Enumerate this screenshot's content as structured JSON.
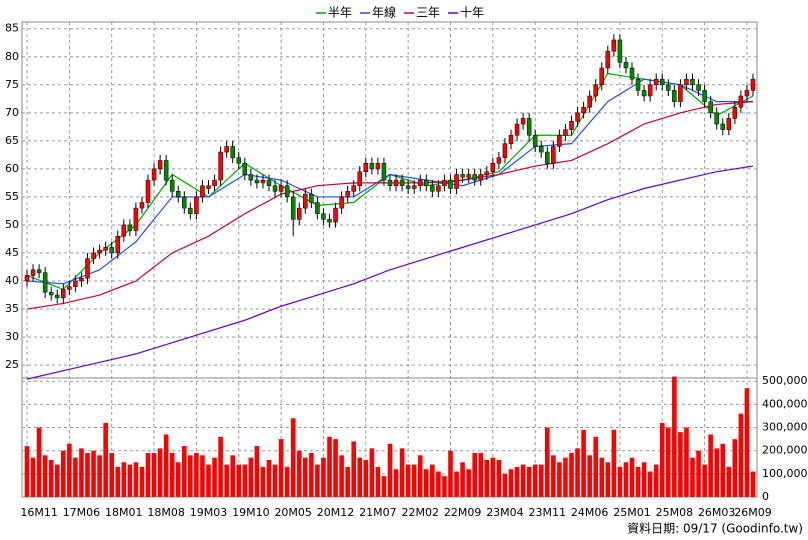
{
  "chart_data": [
    {
      "type": "candlestick",
      "grid": true,
      "legend": "top",
      "up_color": "#ff0000",
      "down_color": "#008800",
      "ylim": [
        22.7,
        86.2
      ],
      "yticks": [
        25,
        30,
        35,
        40,
        45,
        50,
        55,
        60,
        65,
        70,
        75,
        80,
        85
      ],
      "open": [
        40,
        41,
        42,
        41.5,
        38,
        37.5,
        37,
        38.5,
        39,
        40,
        40.5,
        44,
        45,
        45.5,
        46,
        45,
        48,
        50,
        49,
        53,
        54,
        58,
        60,
        61.5,
        58,
        56,
        55,
        53,
        52,
        55,
        56.5,
        57,
        58,
        63,
        64,
        62,
        61,
        59,
        58,
        57.5,
        58,
        57,
        56,
        57,
        55,
        51,
        53,
        55.5,
        54,
        52,
        51,
        50.5,
        53,
        55,
        56,
        57,
        59.5,
        61,
        60,
        61,
        58,
        57,
        58,
        57,
        56.5,
        57,
        58,
        57,
        56,
        57,
        58,
        56.5,
        59,
        58.5,
        59,
        58,
        59,
        59.5,
        61,
        62,
        64.5,
        66,
        68,
        69,
        66,
        64,
        63,
        61,
        64,
        66,
        67,
        68.5,
        70,
        71,
        73,
        75,
        78,
        81,
        83,
        79,
        78,
        76,
        74,
        73,
        75,
        76,
        75,
        74,
        72,
        75,
        76,
        75,
        74,
        72,
        70,
        68,
        67,
        69,
        71,
        73,
        74
      ],
      "high": [
        42,
        43,
        43,
        42.5,
        39,
        38.5,
        39.5,
        40,
        41,
        41.5,
        45,
        46,
        46.5,
        47,
        47,
        49,
        51,
        51,
        54,
        55,
        59,
        61,
        62.5,
        62.5,
        59,
        57,
        56,
        54,
        56,
        58,
        58,
        59,
        64,
        65,
        65,
        63,
        62,
        60,
        59,
        59,
        59,
        58,
        58,
        58,
        56,
        54,
        56.5,
        56.5,
        55,
        53,
        52,
        54,
        56,
        57,
        58,
        60.5,
        62,
        62,
        62,
        62,
        59,
        59,
        59,
        58,
        58,
        59,
        59,
        58,
        58,
        59,
        59,
        60,
        60,
        60,
        60,
        60,
        60.5,
        62,
        63,
        65.5,
        67,
        69,
        70,
        70,
        67,
        65,
        64,
        65,
        67,
        68,
        69.5,
        71,
        72,
        74,
        76,
        79,
        82,
        84,
        84,
        80,
        79,
        77,
        75,
        76,
        77,
        77,
        76,
        75,
        76,
        77,
        77,
        76,
        75,
        73,
        71,
        69,
        70,
        72,
        74,
        75,
        77
      ],
      "low": [
        39,
        40,
        40.5,
        37,
        36.5,
        36,
        36,
        37.5,
        38,
        39,
        39.5,
        43,
        44,
        44.5,
        44,
        44,
        47,
        48,
        48,
        52,
        53,
        57,
        59,
        57,
        55,
        54,
        52,
        51,
        51,
        54,
        55.5,
        56,
        57,
        62,
        61,
        60,
        58,
        57,
        56.5,
        56.5,
        56,
        55,
        55,
        54,
        48,
        50,
        52,
        53,
        51,
        50,
        49.5,
        49.5,
        52,
        54,
        55,
        56,
        58.5,
        59,
        59,
        57,
        56,
        56,
        56,
        55.5,
        55.5,
        56,
        56,
        55,
        55,
        56,
        55.5,
        55.5,
        57.5,
        57.5,
        57,
        57,
        58,
        58.5,
        60,
        61,
        63.5,
        65,
        67,
        65,
        63,
        62,
        60,
        60,
        63,
        65,
        66,
        67.5,
        69,
        70,
        72,
        74,
        77,
        80,
        78,
        77,
        75,
        73,
        72,
        72,
        74,
        74,
        73,
        71,
        71,
        74,
        74,
        73,
        71,
        69,
        67,
        66,
        66,
        68,
        70,
        72,
        73
      ],
      "close": [
        41,
        42,
        41.5,
        38,
        37.5,
        37,
        38.5,
        39,
        40,
        40.5,
        44,
        45,
        45.5,
        46,
        45,
        48,
        50,
        49,
        53,
        54,
        58,
        60,
        61.5,
        58,
        56,
        55,
        53,
        52,
        55,
        57,
        57,
        58,
        63,
        64,
        62,
        61,
        59,
        58,
        57.5,
        58,
        57,
        56,
        57,
        55,
        51,
        53,
        55.5,
        54,
        52,
        51,
        50.5,
        53,
        55,
        56,
        57,
        59.5,
        61,
        60,
        61,
        58,
        57,
        58,
        57,
        56.5,
        57,
        58,
        57,
        56,
        57,
        58,
        56.5,
        59,
        58.5,
        59,
        58,
        59,
        59.5,
        61,
        62,
        64.5,
        66,
        68,
        69,
        66,
        64,
        63,
        61,
        64,
        66,
        67,
        68.5,
        70,
        71,
        73,
        75,
        78,
        81,
        83,
        79,
        78,
        76,
        74,
        73,
        75,
        76,
        75,
        74,
        72,
        75,
        76,
        75,
        74,
        72,
        70,
        68,
        67,
        69,
        71,
        73,
        74,
        76
      ],
      "lines": [
        {
          "name": "半年",
          "color": "#00aa00",
          "x": [
            0,
            6,
            12,
            18,
            24,
            30,
            36,
            42,
            48,
            54,
            60,
            66,
            72,
            78,
            84,
            90,
            96,
            102,
            108,
            114,
            120
          ],
          "values": [
            41,
            38.5,
            45,
            50,
            59,
            55,
            61,
            57,
            53.5,
            54,
            59,
            57,
            58,
            59.5,
            66,
            66,
            77,
            76,
            75,
            69.5,
            73
          ]
        },
        {
          "name": "年線",
          "color": "#1e50ff",
          "x": [
            0,
            6,
            12,
            18,
            24,
            30,
            36,
            42,
            48,
            54,
            60,
            66,
            72,
            78,
            84,
            90,
            96,
            102,
            108,
            114,
            120
          ],
          "values": [
            40,
            39.5,
            42,
            47,
            55,
            55,
            59,
            58,
            55,
            55,
            59,
            58,
            57,
            59,
            64,
            64.5,
            72,
            76,
            75,
            72,
            72
          ]
        },
        {
          "name": "三年",
          "color": "#cc0033",
          "x": [
            0,
            6,
            12,
            18,
            24,
            30,
            36,
            42,
            48,
            54,
            60,
            66,
            72,
            78,
            84,
            90,
            96,
            102,
            108,
            114,
            120
          ],
          "values": [
            35,
            36,
            37.5,
            40,
            45,
            48,
            52,
            55.5,
            57,
            57.5,
            57.5,
            57.5,
            58,
            59,
            60.5,
            61.5,
            64.5,
            68,
            70,
            71.5,
            72
          ]
        },
        {
          "name": "十年",
          "color": "#6600cc",
          "x": [
            0,
            6,
            12,
            18,
            24,
            30,
            36,
            42,
            48,
            54,
            60,
            66,
            72,
            78,
            84,
            90,
            96,
            102,
            108,
            114,
            120
          ],
          "values": [
            22.5,
            24,
            25.5,
            27,
            29,
            31,
            33,
            35.5,
            37.5,
            39.5,
            42,
            44,
            46,
            48,
            50,
            52,
            54.5,
            56.5,
            58,
            59.5,
            60.5
          ]
        }
      ]
    },
    {
      "type": "bar",
      "grid": true,
      "color": "#ff0000",
      "ylim": [
        0,
        514000
      ],
      "yticks": [
        0,
        {
          "value": 100000,
          "label": "100,000"
        },
        {
          "value": 200000,
          "label": "200,000"
        },
        {
          "value": 300000,
          "label": "300,000"
        },
        {
          "value": 400000,
          "label": "400,000"
        },
        {
          "value": 500000,
          "label": "500,000"
        }
      ],
      "categories": [
        null,
        null,
        "16M11",
        null,
        null,
        null,
        null,
        null,
        null,
        "17M06",
        null,
        null,
        null,
        null,
        null,
        null,
        "18M01",
        null,
        null,
        null,
        null,
        null,
        null,
        "18M08",
        null,
        null,
        null,
        null,
        null,
        null,
        "19M03",
        null,
        null,
        null,
        null,
        null,
        null,
        "19M10",
        null,
        null,
        null,
        null,
        null,
        null,
        "20M05",
        null,
        null,
        null,
        null,
        null,
        null,
        "20M12",
        null,
        null,
        null,
        null,
        null,
        null,
        "21M07",
        null,
        null,
        null,
        null,
        null,
        null,
        "22M02",
        null,
        null,
        null,
        null,
        null,
        null,
        "22M09",
        null,
        null,
        null,
        null,
        null,
        null,
        "23M04",
        null,
        null,
        null,
        null,
        null,
        null,
        "23M11",
        null,
        null,
        null,
        null,
        null,
        null,
        "24M06",
        null,
        null,
        null,
        null,
        null,
        null,
        "25M01",
        null,
        null,
        null,
        null,
        null,
        null,
        "25M08",
        null,
        null,
        null,
        null,
        null,
        null,
        "26M03",
        null,
        null,
        null,
        null,
        null,
        "26M09"
      ],
      "values": [
        220000,
        170000,
        300000,
        180000,
        160000,
        140000,
        200000,
        230000,
        170000,
        210000,
        190000,
        200000,
        180000,
        320000,
        190000,
        130000,
        150000,
        140000,
        150000,
        130000,
        190000,
        190000,
        210000,
        270000,
        190000,
        150000,
        220000,
        180000,
        190000,
        180000,
        140000,
        170000,
        260000,
        140000,
        180000,
        140000,
        140000,
        170000,
        220000,
        130000,
        160000,
        140000,
        250000,
        130000,
        340000,
        200000,
        170000,
        190000,
        140000,
        170000,
        260000,
        250000,
        180000,
        130000,
        240000,
        170000,
        160000,
        210000,
        130000,
        90000,
        230000,
        120000,
        210000,
        140000,
        140000,
        180000,
        120000,
        140000,
        110000,
        90000,
        200000,
        110000,
        150000,
        120000,
        190000,
        190000,
        160000,
        170000,
        160000,
        100000,
        120000,
        130000,
        140000,
        130000,
        140000,
        140000,
        300000,
        180000,
        150000,
        170000,
        190000,
        210000,
        290000,
        180000,
        260000,
        170000,
        150000,
        290000,
        130000,
        150000,
        170000,
        130000,
        150000,
        110000,
        140000,
        320000,
        300000,
        520000,
        280000,
        300000,
        170000,
        200000,
        140000,
        270000,
        210000,
        230000,
        130000,
        250000,
        360000,
        470000,
        110000
      ]
    }
  ],
  "footer": "資料日期: 09/17 (Goodinfo.tw)"
}
